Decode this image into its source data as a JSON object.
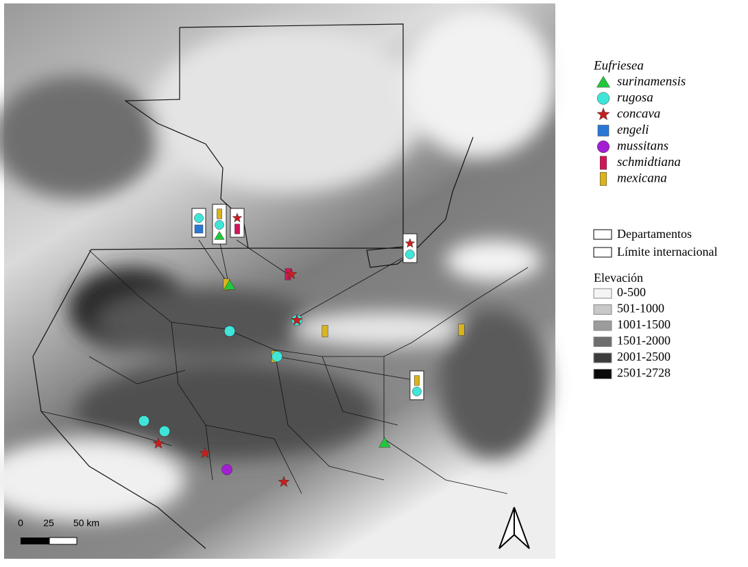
{
  "legend": {
    "genus": "Eufriesea",
    "species": [
      {
        "name": "surinamensis",
        "color": "#22c83c",
        "shape": "triangle"
      },
      {
        "name": "rugosa",
        "color": "#3fe6d8",
        "shape": "circle"
      },
      {
        "name": "concava",
        "color": "#c81e1e",
        "shape": "star"
      },
      {
        "name": "engeli",
        "color": "#2a78d6",
        "shape": "square"
      },
      {
        "name": "mussitans",
        "color": "#a21fd2",
        "shape": "circle"
      },
      {
        "name": "schmidtiana",
        "color": "#d4145a",
        "shape": "bar"
      },
      {
        "name": "mexicana",
        "color": "#d9b41c",
        "shape": "bar"
      }
    ],
    "boundaries": [
      "Departamentos",
      "Límite internacional"
    ],
    "elevation_title": "Elevación",
    "elevation": [
      {
        "label": "0-500",
        "color": "#f4f4f4"
      },
      {
        "label": "501-1000",
        "color": "#c8c8c8"
      },
      {
        "label": "1001-1500",
        "color": "#9c9c9c"
      },
      {
        "label": "1501-2000",
        "color": "#6e6e6e"
      },
      {
        "label": "2001-2500",
        "color": "#3c3c3c"
      },
      {
        "label": "2501-2728",
        "color": "#0a0a0a"
      }
    ]
  },
  "scale_bar": {
    "labels": [
      "0",
      "25",
      "50 km"
    ]
  }
}
